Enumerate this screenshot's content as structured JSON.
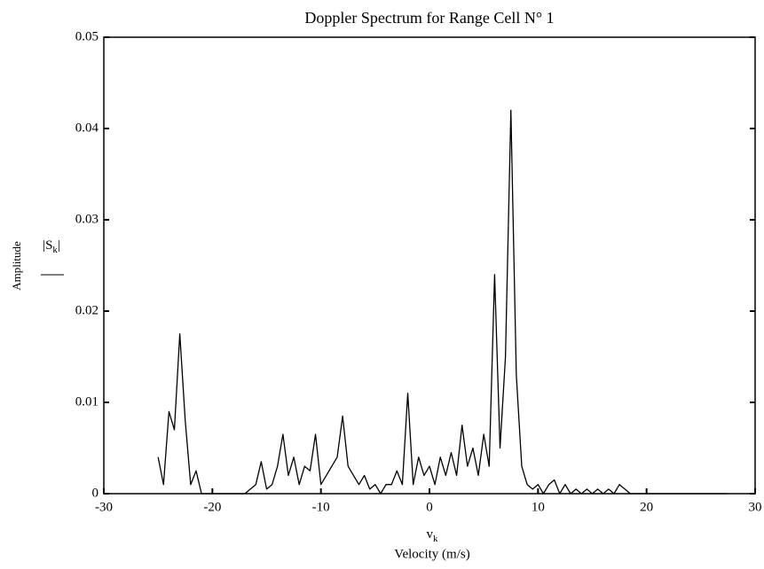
{
  "chart_data": {
    "type": "line",
    "title": "Doppler Spectrum for Range Cell N° 1",
    "x_label_symbol": "v",
    "x_label_subscript": "k",
    "x_label": "Velocity (m/s)",
    "y_label": "Amplitude",
    "y_label_symbol": "|S",
    "y_label_subscript": "k",
    "y_label_symbol_end": "|",
    "xlim": [
      -30,
      30
    ],
    "ylim": [
      0,
      0.05
    ],
    "xticks": [
      -30,
      -20,
      -10,
      0,
      10,
      20,
      30
    ],
    "yticks": [
      0,
      0.01,
      0.02,
      0.03,
      0.04,
      0.05
    ],
    "color": "#000000",
    "x": [
      -25,
      -24.5,
      -24,
      -23.5,
      -23,
      -22.5,
      -22,
      -21.5,
      -21,
      -20.5,
      -20,
      -19.5,
      -19,
      -18.5,
      -18,
      -17.5,
      -17,
      -16.5,
      -16,
      -15.5,
      -15,
      -14.5,
      -14,
      -13.5,
      -13,
      -12.5,
      -12,
      -11.5,
      -11,
      -10.5,
      -10,
      -9.5,
      -9,
      -8.5,
      -8,
      -7.5,
      -7,
      -6.5,
      -6,
      -5.5,
      -5,
      -4.5,
      -4,
      -3.5,
      -3,
      -2.5,
      -2,
      -1.5,
      -1,
      -0.5,
      0,
      0.5,
      1,
      1.5,
      2,
      2.5,
      3,
      3.5,
      4,
      4.5,
      5,
      5.5,
      6,
      6.5,
      7,
      7.5,
      8,
      8.5,
      9,
      9.5,
      10,
      10.5,
      11,
      11.5,
      12,
      12.5,
      13,
      13.5,
      14,
      14.5,
      15,
      15.5,
      16,
      16.5,
      17,
      17.5,
      18,
      18.5,
      19,
      19.5,
      20,
      20.5,
      21,
      21.5,
      22,
      22.5,
      23,
      23.5,
      24,
      24.5,
      25,
      25.5,
      26,
      26.5,
      27,
      27.5
    ],
    "values": [
      0.004,
      0.001,
      0.009,
      0.007,
      0.0175,
      0.008,
      0.001,
      0.0025,
      0,
      0,
      0,
      0,
      0,
      0,
      0,
      0,
      0,
      0.0005,
      0.001,
      0.0035,
      0.0005,
      0.001,
      0.003,
      0.0065,
      0.002,
      0.004,
      0.001,
      0.003,
      0.0025,
      0.0065,
      0.001,
      0.002,
      0.003,
      0.004,
      0.0085,
      0.003,
      0.002,
      0.001,
      0.002,
      0.0005,
      0.001,
      0,
      0.001,
      0.001,
      0.0025,
      0.001,
      0.011,
      0.001,
      0.004,
      0.002,
      0.003,
      0.001,
      0.004,
      0.002,
      0.0045,
      0.002,
      0.0075,
      0.003,
      0.005,
      0.002,
      0.0065,
      0.003,
      0.024,
      0.005,
      0.015,
      0.042,
      0.013,
      0.003,
      0.001,
      0.0005,
      0.001,
      0,
      0.001,
      0.0015,
      0,
      0.001,
      0,
      0.0005,
      0,
      0.0005,
      0,
      0.0005,
      0,
      0.0005,
      0,
      0.001,
      0.0005,
      0,
      0,
      0,
      0,
      0,
      0,
      0,
      0,
      0,
      0,
      0,
      0,
      0,
      0,
      0,
      0,
      0,
      0,
      0
    ]
  }
}
